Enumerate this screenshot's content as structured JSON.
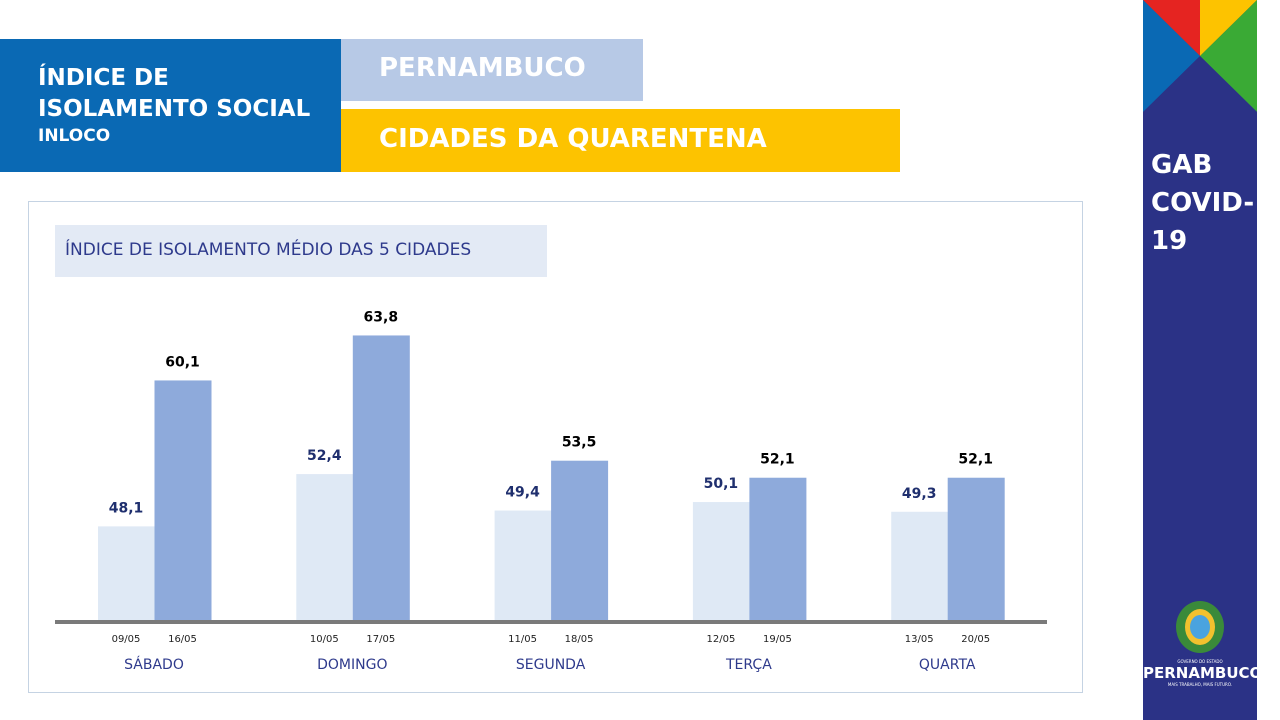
{
  "header": {
    "title_line1": "ÍNDICE DE",
    "title_line2": "ISOLAMENTO SOCIAL",
    "title_line3": "INLOCO",
    "state": "PERNAMBUCO",
    "subtitle": "CIDADES DA QUARENTENA"
  },
  "sidebar": {
    "label_line1": "GAB",
    "label_line2": "COVID-",
    "label_line3": "19",
    "logo_text": "PERNAMBUCO",
    "logo_small": "GOVERNO DO ESTADO",
    "logo_tagline": "MAIS TRABALHO, MAIS FUTURO."
  },
  "colors": {
    "header_blue": "#0a69b4",
    "light_blue": "#b7c9e6",
    "yellow": "#fdc300",
    "navy": "#2b3286",
    "bar_prev": "#dfe9f5",
    "bar_curr": "#8eaadb"
  },
  "chart_data": {
    "type": "bar",
    "title": "ÍNDICE DE ISOLAMENTO MÉDIO DAS 5 CIDADES",
    "categories": [
      "SÁBADO",
      "DOMINGO",
      "SEGUNDA",
      "TERÇA",
      "QUARTA"
    ],
    "series": [
      {
        "dates": [
          "09/05",
          "10/05",
          "11/05",
          "12/05",
          "13/05"
        ],
        "values": [
          48.1,
          52.4,
          49.4,
          50.1,
          49.3
        ],
        "labels": [
          "48,1",
          "52,4",
          "49,4",
          "50,1",
          "49,3"
        ]
      },
      {
        "dates": [
          "16/05",
          "17/05",
          "18/05",
          "19/05",
          "20/05"
        ],
        "values": [
          60.1,
          63.8,
          53.5,
          52.1,
          52.1
        ],
        "labels": [
          "60,1",
          "63,8",
          "53,5",
          "52,1",
          "52,1"
        ]
      }
    ],
    "ylim": [
      40.4,
      68
    ],
    "grid": false,
    "legend": "none"
  }
}
